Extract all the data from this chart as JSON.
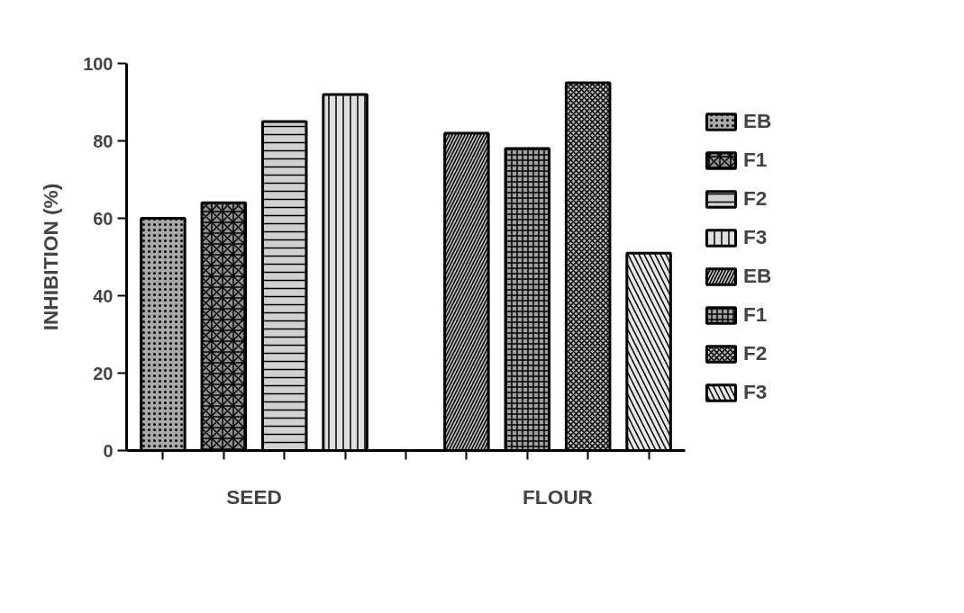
{
  "chart_data": {
    "type": "bar",
    "ylabel": "INHIBITION (%)",
    "categories": [
      "SEED",
      "FLOUR"
    ],
    "series": [
      {
        "name": "EB",
        "color": "#a8a8a8",
        "values": [
          60,
          null
        ]
      },
      {
        "name": "F1",
        "color": "#909090",
        "values": [
          64,
          null
        ]
      },
      {
        "name": "F2",
        "color": "#d0d0d0",
        "values": [
          85,
          null
        ]
      },
      {
        "name": "F3",
        "color": "#e0e0e0",
        "values": [
          92,
          null
        ]
      },
      {
        "name": "EB",
        "color": "#c0c0c0",
        "values": [
          null,
          82
        ]
      },
      {
        "name": "F1",
        "color": "#a0a0a0",
        "values": [
          null,
          78
        ]
      },
      {
        "name": "F2",
        "color": "#b8b8b8",
        "values": [
          null,
          95
        ]
      },
      {
        "name": "F3",
        "color": "#e8e8e8",
        "values": [
          null,
          51
        ]
      }
    ],
    "ylim": [
      0,
      100
    ],
    "yticks": [
      0,
      20,
      40,
      60,
      80,
      100
    ],
    "grid": false,
    "legend": "right"
  }
}
